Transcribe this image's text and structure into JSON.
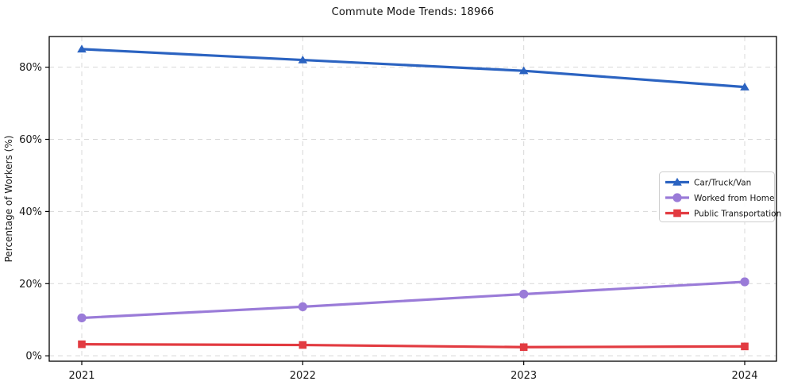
{
  "title": "Commute Mode Trends: 18966",
  "chart_data": {
    "type": "line",
    "title": "Commute Mode Trends: 18966",
    "xlabel": "",
    "ylabel": "Percentage of Workers (%)",
    "x": [
      "2021",
      "2022",
      "2023",
      "2024"
    ],
    "series": [
      {
        "name": "Car/Truck/Van",
        "values": [
          85.0,
          82.0,
          79.0,
          74.5
        ],
        "color": "#2b63c1",
        "marker": "triangle"
      },
      {
        "name": "Worked from Home",
        "values": [
          10.5,
          13.6,
          17.1,
          20.5
        ],
        "color": "#9a7bd8",
        "marker": "circle"
      },
      {
        "name": "Public Transportation",
        "values": [
          3.2,
          3.0,
          2.4,
          2.6
        ],
        "color": "#e23b41",
        "marker": "square"
      }
    ],
    "yticks": [
      0,
      20,
      40,
      60,
      80
    ],
    "ytick_labels": [
      "0%",
      "20%",
      "40%",
      "60%",
      "80%"
    ],
    "ylim": [
      -1.5,
      88.5
    ],
    "grid": "dashed-both-axes",
    "grid_color": "#d8d8d8",
    "legend_position": "right-middle",
    "legend_labels": [
      "Car/Truck/Van",
      "Worked from Home",
      "Public Transportation"
    ]
  }
}
